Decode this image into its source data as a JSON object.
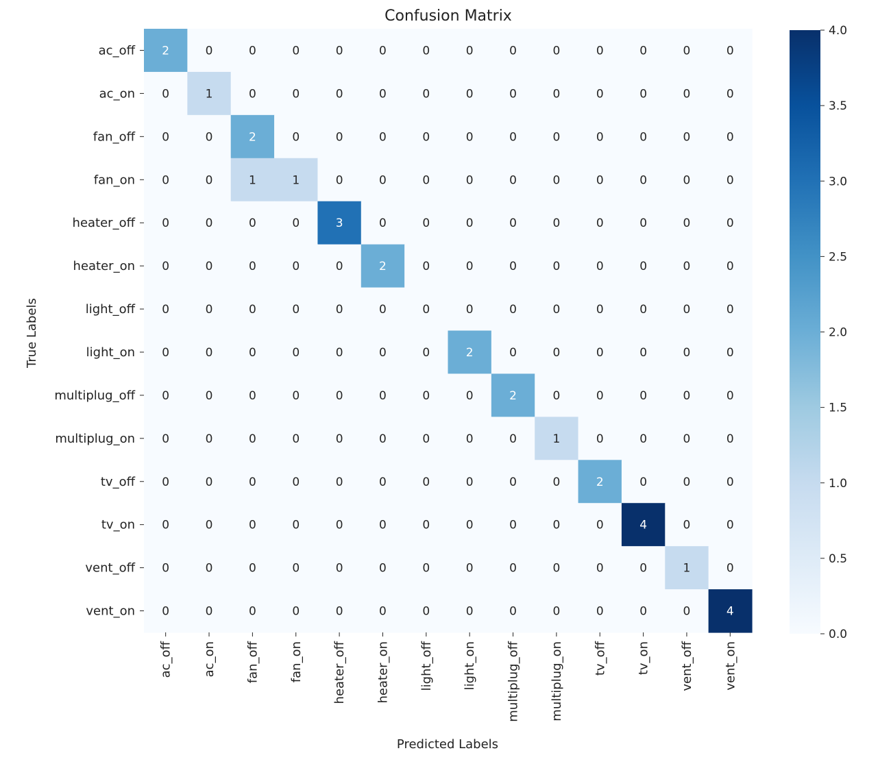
{
  "chart_data": {
    "type": "heatmap",
    "title": "Confusion Matrix",
    "xlabel": "Predicted Labels",
    "ylabel": "True Labels",
    "labels": [
      "ac_off",
      "ac_on",
      "fan_off",
      "fan_on",
      "heater_off",
      "heater_on",
      "light_off",
      "light_on",
      "multiplug_off",
      "multiplug_on",
      "tv_off",
      "tv_on",
      "vent_off",
      "vent_on"
    ],
    "matrix": [
      [
        2,
        0,
        0,
        0,
        0,
        0,
        0,
        0,
        0,
        0,
        0,
        0,
        0,
        0
      ],
      [
        0,
        1,
        0,
        0,
        0,
        0,
        0,
        0,
        0,
        0,
        0,
        0,
        0,
        0
      ],
      [
        0,
        0,
        2,
        0,
        0,
        0,
        0,
        0,
        0,
        0,
        0,
        0,
        0,
        0
      ],
      [
        0,
        0,
        1,
        1,
        0,
        0,
        0,
        0,
        0,
        0,
        0,
        0,
        0,
        0
      ],
      [
        0,
        0,
        0,
        0,
        3,
        0,
        0,
        0,
        0,
        0,
        0,
        0,
        0,
        0
      ],
      [
        0,
        0,
        0,
        0,
        0,
        2,
        0,
        0,
        0,
        0,
        0,
        0,
        0,
        0
      ],
      [
        0,
        0,
        0,
        0,
        0,
        0,
        0,
        0,
        0,
        0,
        0,
        0,
        0,
        0
      ],
      [
        0,
        0,
        0,
        0,
        0,
        0,
        0,
        2,
        0,
        0,
        0,
        0,
        0,
        0
      ],
      [
        0,
        0,
        0,
        0,
        0,
        0,
        0,
        0,
        2,
        0,
        0,
        0,
        0,
        0
      ],
      [
        0,
        0,
        0,
        0,
        0,
        0,
        0,
        0,
        0,
        1,
        0,
        0,
        0,
        0
      ],
      [
        0,
        0,
        0,
        0,
        0,
        0,
        0,
        0,
        0,
        0,
        2,
        0,
        0,
        0
      ],
      [
        0,
        0,
        0,
        0,
        0,
        0,
        0,
        0,
        0,
        0,
        0,
        4,
        0,
        0
      ],
      [
        0,
        0,
        0,
        0,
        0,
        0,
        0,
        0,
        0,
        0,
        0,
        0,
        1,
        0
      ],
      [
        0,
        0,
        0,
        0,
        0,
        0,
        0,
        0,
        0,
        0,
        0,
        0,
        0,
        4
      ]
    ],
    "colormap": "Blues",
    "colorbar": {
      "range": [
        0,
        4
      ],
      "ticks": [
        0,
        0.5,
        1,
        1.5,
        2,
        2.5,
        3,
        3.5,
        4
      ],
      "tick_labels": [
        "0.0",
        "0.5",
        "1.0",
        "1.5",
        "2.0",
        "2.5",
        "3.0",
        "3.5",
        "4.0"
      ]
    }
  }
}
